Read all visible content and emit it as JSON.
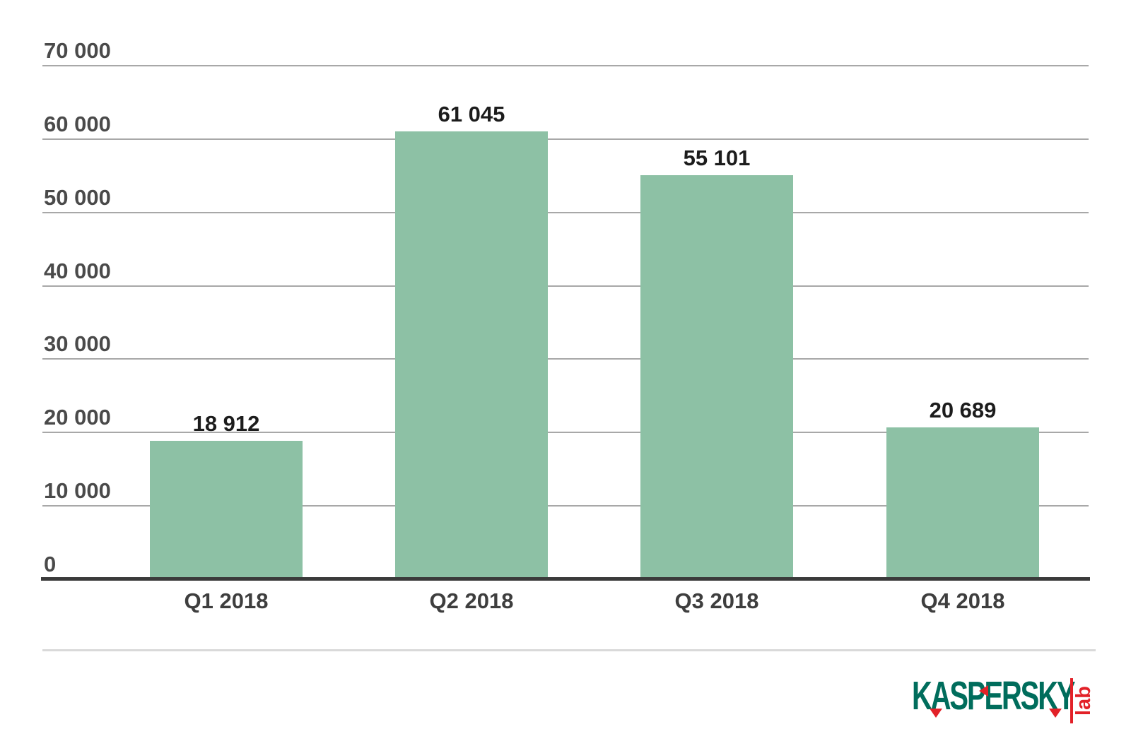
{
  "chart_data": {
    "type": "bar",
    "title": "",
    "xlabel": "",
    "ylabel": "",
    "categories": [
      "Q1 2018",
      "Q2 2018",
      "Q3 2018",
      "Q4 2018"
    ],
    "values": [
      18912,
      61045,
      55101,
      20689
    ],
    "value_labels": [
      "18 912",
      "61 045",
      "55 101",
      "20 689"
    ],
    "ylim": [
      0,
      70000
    ],
    "ytick_step": 10000,
    "ytick_labels": [
      "0",
      "10 000",
      "20 000",
      "30 000",
      "40 000",
      "50 000",
      "60 000",
      "70 000"
    ],
    "grid": true,
    "legend_position": "none",
    "bar_color": "#8dc1a5",
    "gridline_color": "#a8a8a8",
    "baseline_color": "#3a3a3a"
  },
  "branding": {
    "wordmark": "KASPERSKY",
    "sub": "lab",
    "green": "#006d5c",
    "red": "#e22128"
  }
}
